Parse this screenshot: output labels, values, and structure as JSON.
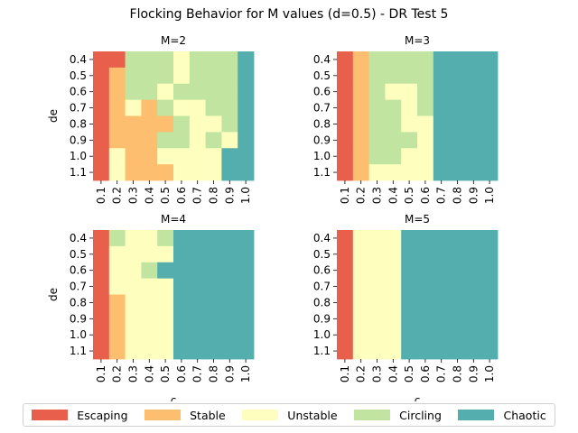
{
  "title": "Flocking Behavior for M values (d=0.5) - DR Test 5",
  "legend": [
    {
      "label": "Escaping",
      "color": "#e8604c"
    },
    {
      "label": "Stable",
      "color": "#fdbf6f"
    },
    {
      "label": "Unstable",
      "color": "#feffbe"
    },
    {
      "label": "Circling",
      "color": "#c1e5a0"
    },
    {
      "label": "Chaotic",
      "color": "#54aeae"
    }
  ],
  "chart_data": [
    {
      "type": "heatmap",
      "title": "M=2",
      "xlabel": "",
      "ylabel": "de",
      "x_categories": [
        "0.1",
        "0.2",
        "0.3",
        "0.4",
        "0.5",
        "0.6",
        "0.7",
        "0.8",
        "0.9",
        "1.0"
      ],
      "y_categories": [
        "0.4",
        "0.5",
        "0.6",
        "0.7",
        "0.8",
        "0.9",
        "1.0",
        "1.1"
      ],
      "values": [
        [
          "Escaping",
          "Escaping",
          "Circling",
          "Circling",
          "Circling",
          "Unstable",
          "Circling",
          "Circling",
          "Circling",
          "Chaotic"
        ],
        [
          "Escaping",
          "Stable",
          "Circling",
          "Circling",
          "Circling",
          "Unstable",
          "Circling",
          "Circling",
          "Circling",
          "Chaotic"
        ],
        [
          "Escaping",
          "Stable",
          "Circling",
          "Circling",
          "Unstable",
          "Circling",
          "Circling",
          "Circling",
          "Circling",
          "Chaotic"
        ],
        [
          "Escaping",
          "Stable",
          "Unstable",
          "Stable",
          "Circling",
          "Unstable",
          "Unstable",
          "Circling",
          "Circling",
          "Chaotic"
        ],
        [
          "Escaping",
          "Stable",
          "Stable",
          "Stable",
          "Stable",
          "Circling",
          "Unstable",
          "Unstable",
          "Circling",
          "Chaotic"
        ],
        [
          "Escaping",
          "Stable",
          "Stable",
          "Stable",
          "Circling",
          "Circling",
          "Unstable",
          "Circling",
          "Unstable",
          "Chaotic"
        ],
        [
          "Escaping",
          "Unstable",
          "Stable",
          "Stable",
          "Unstable",
          "Unstable",
          "Unstable",
          "Unstable",
          "Chaotic",
          "Chaotic"
        ],
        [
          "Escaping",
          "Unstable",
          "Stable",
          "Stable",
          "Stable",
          "Unstable",
          "Unstable",
          "Unstable",
          "Chaotic",
          "Chaotic"
        ]
      ]
    },
    {
      "type": "heatmap",
      "title": "M=3",
      "xlabel": "",
      "ylabel": "",
      "x_categories": [
        "0.1",
        "0.2",
        "0.3",
        "0.4",
        "0.5",
        "0.6",
        "0.7",
        "0.8",
        "0.9",
        "1.0"
      ],
      "y_categories": [
        "0.4",
        "0.5",
        "0.6",
        "0.7",
        "0.8",
        "0.9",
        "1.0",
        "1.1"
      ],
      "values": [
        [
          "Escaping",
          "Stable",
          "Circling",
          "Circling",
          "Circling",
          "Circling",
          "Chaotic",
          "Chaotic",
          "Chaotic",
          "Chaotic"
        ],
        [
          "Escaping",
          "Stable",
          "Circling",
          "Circling",
          "Circling",
          "Circling",
          "Chaotic",
          "Chaotic",
          "Chaotic",
          "Chaotic"
        ],
        [
          "Escaping",
          "Stable",
          "Circling",
          "Unstable",
          "Unstable",
          "Circling",
          "Chaotic",
          "Chaotic",
          "Chaotic",
          "Chaotic"
        ],
        [
          "Escaping",
          "Stable",
          "Circling",
          "Circling",
          "Unstable",
          "Circling",
          "Chaotic",
          "Chaotic",
          "Chaotic",
          "Chaotic"
        ],
        [
          "Escaping",
          "Stable",
          "Circling",
          "Circling",
          "Unstable",
          "Unstable",
          "Chaotic",
          "Chaotic",
          "Chaotic",
          "Chaotic"
        ],
        [
          "Escaping",
          "Stable",
          "Circling",
          "Circling",
          "Circling",
          "Unstable",
          "Chaotic",
          "Chaotic",
          "Chaotic",
          "Chaotic"
        ],
        [
          "Escaping",
          "Stable",
          "Circling",
          "Circling",
          "Unstable",
          "Unstable",
          "Chaotic",
          "Chaotic",
          "Chaotic",
          "Chaotic"
        ],
        [
          "Escaping",
          "Stable",
          "Unstable",
          "Unstable",
          "Unstable",
          "Unstable",
          "Chaotic",
          "Chaotic",
          "Chaotic",
          "Chaotic"
        ]
      ]
    },
    {
      "type": "heatmap",
      "title": "M=4",
      "xlabel": "c",
      "ylabel": "de",
      "x_categories": [
        "0.1",
        "0.2",
        "0.3",
        "0.4",
        "0.5",
        "0.6",
        "0.7",
        "0.8",
        "0.9",
        "1.0"
      ],
      "y_categories": [
        "0.4",
        "0.5",
        "0.6",
        "0.7",
        "0.8",
        "0.9",
        "1.0",
        "1.1"
      ],
      "values": [
        [
          "Escaping",
          "Circling",
          "Unstable",
          "Unstable",
          "Circling",
          "Chaotic",
          "Chaotic",
          "Chaotic",
          "Chaotic",
          "Chaotic"
        ],
        [
          "Escaping",
          "Unstable",
          "Unstable",
          "Unstable",
          "Unstable",
          "Chaotic",
          "Chaotic",
          "Chaotic",
          "Chaotic",
          "Chaotic"
        ],
        [
          "Escaping",
          "Unstable",
          "Unstable",
          "Circling",
          "Chaotic",
          "Chaotic",
          "Chaotic",
          "Chaotic",
          "Chaotic",
          "Chaotic"
        ],
        [
          "Escaping",
          "Unstable",
          "Unstable",
          "Unstable",
          "Unstable",
          "Chaotic",
          "Chaotic",
          "Chaotic",
          "Chaotic",
          "Chaotic"
        ],
        [
          "Escaping",
          "Stable",
          "Unstable",
          "Unstable",
          "Unstable",
          "Chaotic",
          "Chaotic",
          "Chaotic",
          "Chaotic",
          "Chaotic"
        ],
        [
          "Escaping",
          "Stable",
          "Unstable",
          "Unstable",
          "Unstable",
          "Chaotic",
          "Chaotic",
          "Chaotic",
          "Chaotic",
          "Chaotic"
        ],
        [
          "Escaping",
          "Stable",
          "Unstable",
          "Unstable",
          "Unstable",
          "Chaotic",
          "Chaotic",
          "Chaotic",
          "Chaotic",
          "Chaotic"
        ],
        [
          "Escaping",
          "Stable",
          "Unstable",
          "Unstable",
          "Unstable",
          "Chaotic",
          "Chaotic",
          "Chaotic",
          "Chaotic",
          "Chaotic"
        ]
      ]
    },
    {
      "type": "heatmap",
      "title": "M=5",
      "xlabel": "c",
      "ylabel": "",
      "x_categories": [
        "0.1",
        "0.2",
        "0.3",
        "0.4",
        "0.5",
        "0.6",
        "0.7",
        "0.8",
        "0.9",
        "1.0"
      ],
      "y_categories": [
        "0.4",
        "0.5",
        "0.6",
        "0.7",
        "0.8",
        "0.9",
        "1.0",
        "1.1"
      ],
      "values": [
        [
          "Escaping",
          "Unstable",
          "Unstable",
          "Unstable",
          "Chaotic",
          "Chaotic",
          "Chaotic",
          "Chaotic",
          "Chaotic",
          "Chaotic"
        ],
        [
          "Escaping",
          "Unstable",
          "Unstable",
          "Unstable",
          "Chaotic",
          "Chaotic",
          "Chaotic",
          "Chaotic",
          "Chaotic",
          "Chaotic"
        ],
        [
          "Escaping",
          "Unstable",
          "Unstable",
          "Unstable",
          "Chaotic",
          "Chaotic",
          "Chaotic",
          "Chaotic",
          "Chaotic",
          "Chaotic"
        ],
        [
          "Escaping",
          "Unstable",
          "Unstable",
          "Unstable",
          "Chaotic",
          "Chaotic",
          "Chaotic",
          "Chaotic",
          "Chaotic",
          "Chaotic"
        ],
        [
          "Escaping",
          "Unstable",
          "Unstable",
          "Unstable",
          "Chaotic",
          "Chaotic",
          "Chaotic",
          "Chaotic",
          "Chaotic",
          "Chaotic"
        ],
        [
          "Escaping",
          "Unstable",
          "Unstable",
          "Unstable",
          "Chaotic",
          "Chaotic",
          "Chaotic",
          "Chaotic",
          "Chaotic",
          "Chaotic"
        ],
        [
          "Escaping",
          "Unstable",
          "Unstable",
          "Unstable",
          "Chaotic",
          "Chaotic",
          "Chaotic",
          "Chaotic",
          "Chaotic",
          "Chaotic"
        ],
        [
          "Escaping",
          "Unstable",
          "Unstable",
          "Unstable",
          "Chaotic",
          "Chaotic",
          "Chaotic",
          "Chaotic",
          "Chaotic",
          "Chaotic"
        ]
      ]
    }
  ]
}
